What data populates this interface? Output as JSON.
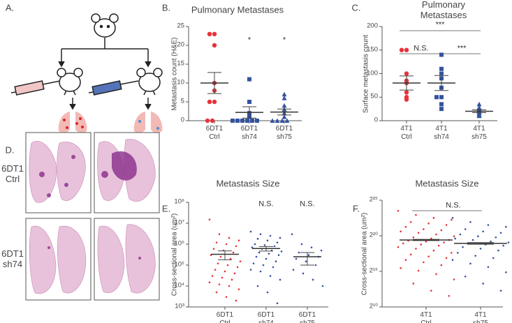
{
  "diagram": {
    "panel": "A."
  },
  "histology": {
    "panel": "D.",
    "rows": [
      "6DT1\nCtrl",
      "6DT1\nsh74"
    ]
  },
  "chart_data": [
    {
      "type": "strip",
      "panel": "B.",
      "title": "Pulmonary Metastases",
      "y_label": "Metastasis count (H&E)",
      "categories": [
        "6DT1\nCtrl",
        "6DT1\nsh74",
        "6DT1\nsh75"
      ],
      "groups": [
        {
          "color": "#e8323a",
          "marker": "circle",
          "values": [
            23,
            23,
            20,
            10,
            8,
            5,
            5,
            0,
            0
          ],
          "mean": 10,
          "sem": 2.8
        },
        {
          "color": "#34539e",
          "marker": "square",
          "values": [
            11,
            5,
            2,
            1,
            0,
            0,
            0,
            0,
            0,
            0
          ],
          "mean": 2.2,
          "sem": 1.5
        },
        {
          "color": "#34539e",
          "marker": "triangle",
          "values": [
            7,
            6,
            4,
            3,
            2,
            1,
            0,
            0,
            0,
            0
          ],
          "mean": 2.3,
          "sem": 0.8
        }
      ],
      "ylim": [
        0,
        25
      ],
      "yticks": [
        0,
        5,
        10,
        15,
        20,
        25
      ],
      "annotations": [
        "*",
        "*"
      ]
    },
    {
      "type": "strip",
      "panel": "C.",
      "title": "Pulmonary Metastases",
      "y_label": "Surface metastasis count",
      "categories": [
        "4T1\nCtrl",
        "4T1\nsh74",
        "4T1\nsh75"
      ],
      "groups": [
        {
          "color": "#e8323a",
          "marker": "circle",
          "values": [
            150,
            150,
            100,
            85,
            80,
            60,
            50,
            45
          ],
          "mean": 80,
          "sem": 15
        },
        {
          "color": "#34539e",
          "marker": "square",
          "values": [
            140,
            110,
            100,
            90,
            70,
            50,
            50,
            35,
            25
          ],
          "mean": 80,
          "sem": 16
        },
        {
          "color": "#34539e",
          "marker": "triangle",
          "values": [
            35,
            28,
            25,
            22,
            20,
            18,
            15,
            12,
            10
          ],
          "mean": 20,
          "sem": 3
        }
      ],
      "ylim": [
        0,
        200
      ],
      "yticks": [
        0,
        50,
        100,
        150,
        200
      ],
      "annotations": [
        "***",
        "N.S.",
        "***"
      ]
    },
    {
      "type": "swarm",
      "panel": "E.",
      "title": "Metastasis Size",
      "y_label": "Cross-sectional area (um²)",
      "log_base": 10,
      "categories": [
        "6DT1\nCtrl",
        "6DT1\nsh74",
        "6DT1\nsh75"
      ],
      "groups": [
        {
          "color": "#e8323a",
          "values": [
            15000000,
            3000000,
            2000000,
            1500000,
            1200000,
            1000000,
            800000,
            600000,
            500000,
            400000,
            300000,
            250000,
            200000,
            150000,
            120000,
            100000,
            80000,
            60000,
            50000,
            40000,
            30000,
            25000,
            20000,
            15000,
            12000,
            10000,
            7000,
            5000,
            3000,
            2000
          ],
          "mean": 330000,
          "sem": 150000
        },
        {
          "color": "#34539e",
          "values": [
            4000000,
            3000000,
            2500000,
            2000000,
            1800000,
            1500000,
            1200000,
            1000000,
            900000,
            800000,
            700000,
            600000,
            500000,
            450000,
            400000,
            350000,
            300000,
            250000,
            200000,
            150000,
            120000,
            100000,
            80000,
            60000,
            50000,
            30000,
            20000,
            10000,
            5000,
            1500
          ],
          "mean": 620000,
          "sem": 150000
        },
        {
          "color": "#34539e",
          "values": [
            3000000,
            1000000,
            700000,
            500000,
            400000,
            300000,
            250000,
            200000,
            150000,
            100000,
            60000,
            40000,
            20000,
            10000
          ],
          "mean": 250000,
          "sem": 150000
        }
      ],
      "ylim": [
        1000,
        100000000
      ],
      "yticks": [
        {
          "value": 1000,
          "label": "10³"
        },
        {
          "value": 10000,
          "label": "10⁴"
        },
        {
          "value": 100000,
          "label": "10⁵"
        },
        {
          "value": 1000000,
          "label": "10⁶"
        },
        {
          "value": 10000000,
          "label": "10⁷"
        },
        {
          "value": 100000000,
          "label": "10⁸"
        }
      ],
      "annotations": [
        "N.S.",
        "N.S."
      ]
    },
    {
      "type": "swarm",
      "panel": "F.",
      "title": "Metastasis Size",
      "y_label": "Cross-sectional area (um²)",
      "log_base": 2,
      "categories": [
        "4T1\nCtrl",
        "4T1\nsh75"
      ],
      "groups": [
        {
          "color": "#e8323a",
          "values": [
            12000000,
            8000000,
            6000000,
            5000000,
            4000000,
            3500000,
            3000000,
            2500000,
            2000000,
            1800000,
            1600000,
            1400000,
            1200000,
            1000000,
            900000,
            800000,
            700000,
            650000,
            600000,
            550000,
            500000,
            450000,
            400000,
            350000,
            300000,
            250000,
            200000,
            170000,
            140000,
            120000,
            100000,
            80000,
            60000,
            45000,
            35000,
            25000,
            15000,
            10000,
            5000,
            3000
          ],
          "mean": 700000,
          "sem": 40000
        },
        {
          "color": "#34539e",
          "values": [
            6000000,
            4000000,
            3000000,
            2500000,
            2000000,
            1600000,
            1400000,
            1200000,
            1000000,
            900000,
            800000,
            700000,
            600000,
            550000,
            500000,
            450000,
            400000,
            350000,
            300000,
            250000,
            200000,
            150000,
            120000,
            100000,
            70000,
            50000,
            30000,
            20000,
            10000,
            5000
          ],
          "mean": 500000,
          "sem": 40000
        }
      ],
      "ylim": [
        1024,
        33554432
      ],
      "yticks": [
        {
          "value": 1024,
          "label": "2¹⁰"
        },
        {
          "value": 32768,
          "label": "2¹⁵"
        },
        {
          "value": 1048576,
          "label": "2²⁰"
        },
        {
          "value": 33554432,
          "label": "2²⁵"
        }
      ],
      "annotations": [
        "N.S."
      ]
    }
  ]
}
